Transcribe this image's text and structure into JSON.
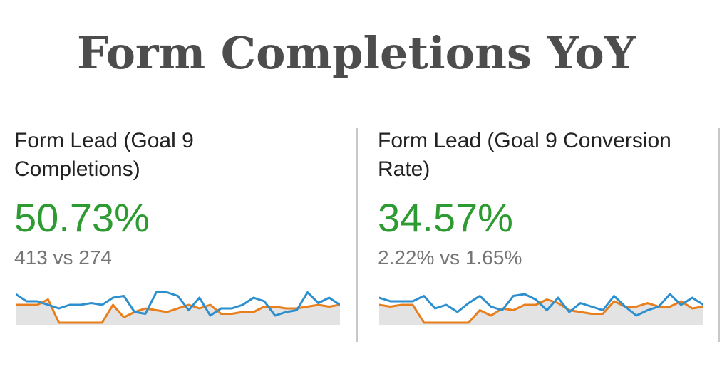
{
  "title": "Form Completions YoY",
  "colors": {
    "positive": "#2e9a32",
    "current": "#2e8fcf",
    "previous": "#e87f1c",
    "area_fill": "#e3e3e3",
    "title": "#4d4d4d"
  },
  "metrics": [
    {
      "label": "Form Lead (Goal 9\nCompletions)",
      "change": "50.73%",
      "comparison": "413 vs 274"
    },
    {
      "label": "Form Lead (Goal 9 Conversion\nRate)",
      "change": "34.57%",
      "comparison": "2.22% vs 1.65%"
    }
  ],
  "chart_data": [
    {
      "type": "line",
      "title": "",
      "xlabel": "",
      "ylabel": "",
      "ylim": [
        0,
        20
      ],
      "series": [
        {
          "values": [
            16,
            12,
            12,
            10,
            8,
            10,
            10,
            11,
            10,
            14,
            15,
            6,
            5,
            17,
            17,
            15,
            7,
            14,
            4,
            8,
            8,
            10,
            14,
            12,
            4,
            6,
            7,
            17,
            11,
            14,
            10
          ]
        },
        {
          "values": [
            10,
            10,
            10,
            13,
            0,
            0,
            0,
            0,
            0,
            10,
            3,
            6,
            8,
            7,
            6,
            8,
            10,
            8,
            10,
            5,
            5,
            6,
            6,
            9,
            9,
            8,
            8,
            9,
            10,
            9,
            10
          ]
        }
      ]
    },
    {
      "type": "line",
      "title": "",
      "xlabel": "",
      "ylabel": "",
      "ylim": [
        0,
        20
      ],
      "series": [
        {
          "values": [
            14,
            12,
            12,
            12,
            15,
            8,
            10,
            6,
            11,
            15,
            9,
            7,
            15,
            16,
            13,
            7,
            14,
            6,
            11,
            9,
            7,
            15,
            9,
            4,
            7,
            9,
            16,
            10,
            14,
            10
          ]
        },
        {
          "values": [
            10,
            9,
            10,
            10,
            0,
            0,
            0,
            0,
            0,
            7,
            4,
            8,
            7,
            10,
            10,
            13,
            11,
            7,
            6,
            5,
            5,
            12,
            9,
            9,
            11,
            9,
            9,
            12,
            8,
            9
          ]
        }
      ]
    }
  ]
}
